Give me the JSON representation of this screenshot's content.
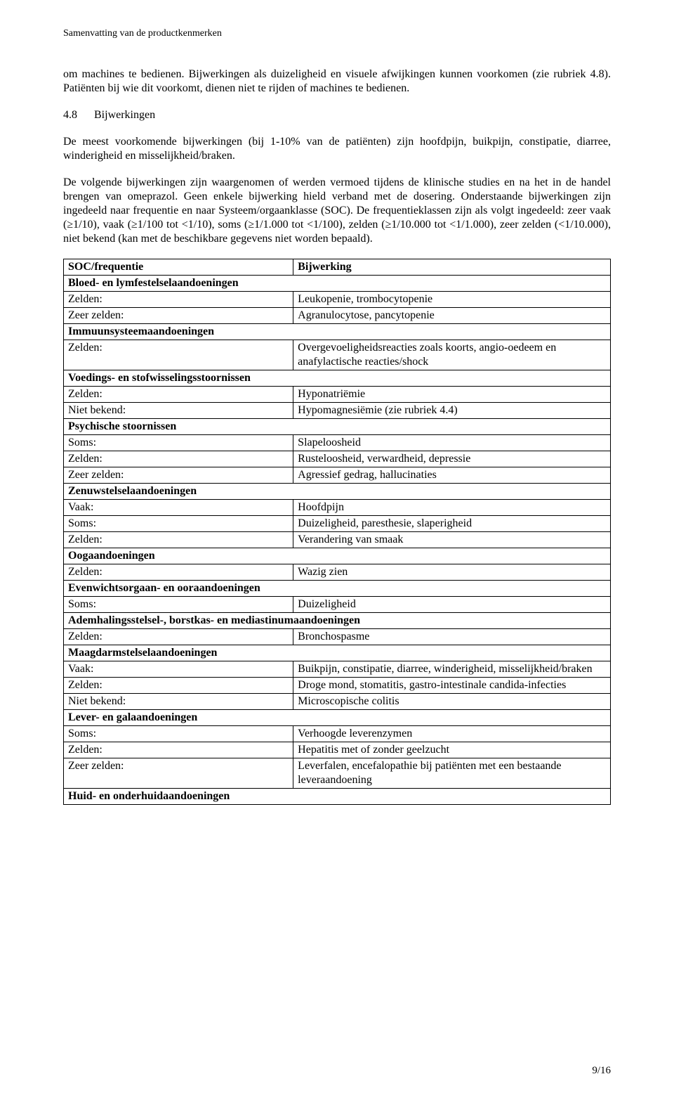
{
  "header": "Samenvatting van de productkenmerken",
  "para1": "om machines te bedienen. Bijwerkingen als duizeligheid en visuele afwijkingen kunnen voorkomen (zie rubriek 4.8). Patiënten bij wie dit voorkomt, dienen niet te rijden of machines te bedienen.",
  "section": {
    "num": "4.8",
    "title": "Bijwerkingen"
  },
  "para2": "De meest voorkomende bijwerkingen (bij 1-10% van de patiënten) zijn hoofdpijn, buikpijn, constipatie, diarree, winderigheid en misselijkheid/braken.",
  "para3": "De volgende bijwerkingen zijn waargenomen of werden vermoed tijdens de klinische studies en na het in de handel brengen van omeprazol. Geen enkele bijwerking hield verband met de dosering. Onderstaande bijwerkingen zijn ingedeeld naar frequentie en naar Systeem/orgaanklasse (SOC). De frequentieklassen zijn als volgt ingedeeld: zeer vaak (≥1/10), vaak (≥1/100 tot <1/10), soms (≥1/1.000 tot <1/100), zelden (≥1/10.000 tot <1/1.000), zeer zelden (<1/10.000), niet bekend (kan met de beschikbare gegevens niet worden bepaald).",
  "table": {
    "head": {
      "left": "SOC/frequentie",
      "right": "Bijwerking"
    },
    "rows": [
      {
        "type": "soc",
        "label": "Bloed- en lymfestelselaandoeningen"
      },
      {
        "type": "row",
        "left": "Zelden:",
        "right": "Leukopenie, trombocytopenie"
      },
      {
        "type": "row",
        "left": "Zeer zelden:",
        "right": "Agranulocytose, pancytopenie"
      },
      {
        "type": "soc",
        "label": "Immuunsysteemaandoeningen"
      },
      {
        "type": "row",
        "left": "Zelden:",
        "right": "Overgevoeligheidsreacties zoals koorts, angio-oedeem en anafylactische reacties/shock"
      },
      {
        "type": "soc",
        "label": "Voedings- en stofwisselingsstoornissen"
      },
      {
        "type": "row",
        "left": "Zelden:",
        "right": "Hyponatriëmie"
      },
      {
        "type": "row",
        "left": "Niet bekend:",
        "right": "Hypomagnesiëmie (zie rubriek 4.4)"
      },
      {
        "type": "soc",
        "label": "Psychische stoornissen"
      },
      {
        "type": "row",
        "left": "Soms:",
        "right": "Slapeloosheid"
      },
      {
        "type": "row",
        "left": "Zelden:",
        "right": "Rusteloosheid, verwardheid, depressie"
      },
      {
        "type": "row",
        "left": "Zeer zelden:",
        "right": "Agressief gedrag, hallucinaties"
      },
      {
        "type": "soc",
        "label": "Zenuwstelselaandoeningen"
      },
      {
        "type": "row",
        "left": "Vaak:",
        "right": "Hoofdpijn"
      },
      {
        "type": "row",
        "left": "Soms:",
        "right": "Duizeligheid, paresthesie, slaperigheid"
      },
      {
        "type": "row",
        "left": "Zelden:",
        "right": "Verandering van smaak"
      },
      {
        "type": "soc",
        "label": "Oogaandoeningen"
      },
      {
        "type": "row",
        "left": "Zelden:",
        "right": "Wazig zien"
      },
      {
        "type": "soc",
        "label": "Evenwichtsorgaan- en ooraandoeningen"
      },
      {
        "type": "row",
        "left": "Soms:",
        "right": "Duizeligheid"
      },
      {
        "type": "soc",
        "label": "Ademhalingsstelsel-, borstkas- en mediastinumaandoeningen"
      },
      {
        "type": "row",
        "left": "Zelden:",
        "right": "Bronchospasme"
      },
      {
        "type": "soc",
        "label": "Maagdarmstelselaandoeningen"
      },
      {
        "type": "row",
        "left": "Vaak:",
        "right": "Buikpijn, constipatie, diarree, winderigheid, misselijkheid/braken"
      },
      {
        "type": "row",
        "left": "Zelden:",
        "right": "Droge mond, stomatitis, gastro-intestinale candida-infecties"
      },
      {
        "type": "row",
        "left": "Niet bekend:",
        "right": "Microscopische colitis"
      },
      {
        "type": "soc",
        "label": "Lever- en galaandoeningen"
      },
      {
        "type": "row",
        "left": "Soms:",
        "right": "Verhoogde leverenzymen"
      },
      {
        "type": "row",
        "left": "Zelden:",
        "right": "Hepatitis met of zonder geelzucht"
      },
      {
        "type": "row",
        "left": "Zeer zelden:",
        "right": "Leverfalen, encefalopathie bij patiënten met een bestaande leveraandoening"
      },
      {
        "type": "soc",
        "label": "Huid- en onderhuidaandoeningen"
      }
    ]
  },
  "footer": "9/16"
}
